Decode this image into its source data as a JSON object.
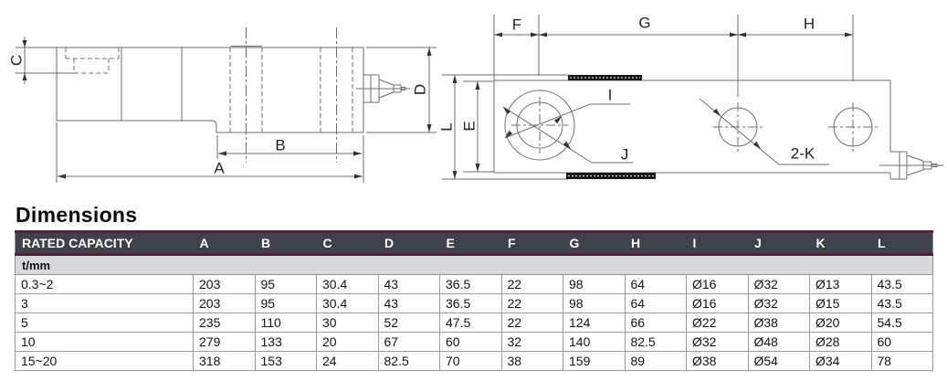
{
  "section_title": "Dimensions",
  "drawing": {
    "side_view_labels": {
      "a": "A",
      "b": "B",
      "c": "C",
      "d": "D"
    },
    "top_view_labels": {
      "f": "F",
      "g": "G",
      "h": "H",
      "e": "E",
      "l": "L",
      "i": "I",
      "j": "J",
      "k2": "2-K"
    }
  },
  "table": {
    "header": [
      "RATED CAPACITY",
      "A",
      "B",
      "C",
      "D",
      "E",
      "F",
      "G",
      "H",
      "I",
      "J",
      "K",
      "L"
    ],
    "unit_row": "t/mm",
    "rows": [
      [
        "0.3~2",
        "203",
        "95",
        "30.4",
        "43",
        "36.5",
        "22",
        "98",
        "64",
        "Ø16",
        "Ø32",
        "Ø13",
        "43.5"
      ],
      [
        "3",
        "203",
        "95",
        "30.4",
        "43",
        "36.5",
        "22",
        "98",
        "64",
        "Ø16",
        "Ø32",
        "Ø15",
        "43.5"
      ],
      [
        "5",
        "235",
        "110",
        "30",
        "52",
        "47.5",
        "22",
        "124",
        "66",
        "Ø22",
        "Ø38",
        "Ø20",
        "54.5"
      ],
      [
        "10",
        "279",
        "133",
        "20",
        "67",
        "60",
        "32",
        "140",
        "82.5",
        "Ø32",
        "Ø48",
        "Ø28",
        "60"
      ],
      [
        "15~20",
        "318",
        "153",
        "24",
        "82.5",
        "70",
        "38",
        "159",
        "89",
        "Ø38",
        "Ø54",
        "Ø34",
        "78"
      ]
    ]
  },
  "colors": {
    "header_bg": "#3e434b",
    "header_text": "#ffffff",
    "accent_line": "#532239",
    "unit_row_bg": "#d9d9db",
    "grid_line": "#9b9b9b",
    "drawing_line": "#6d6d6d"
  }
}
